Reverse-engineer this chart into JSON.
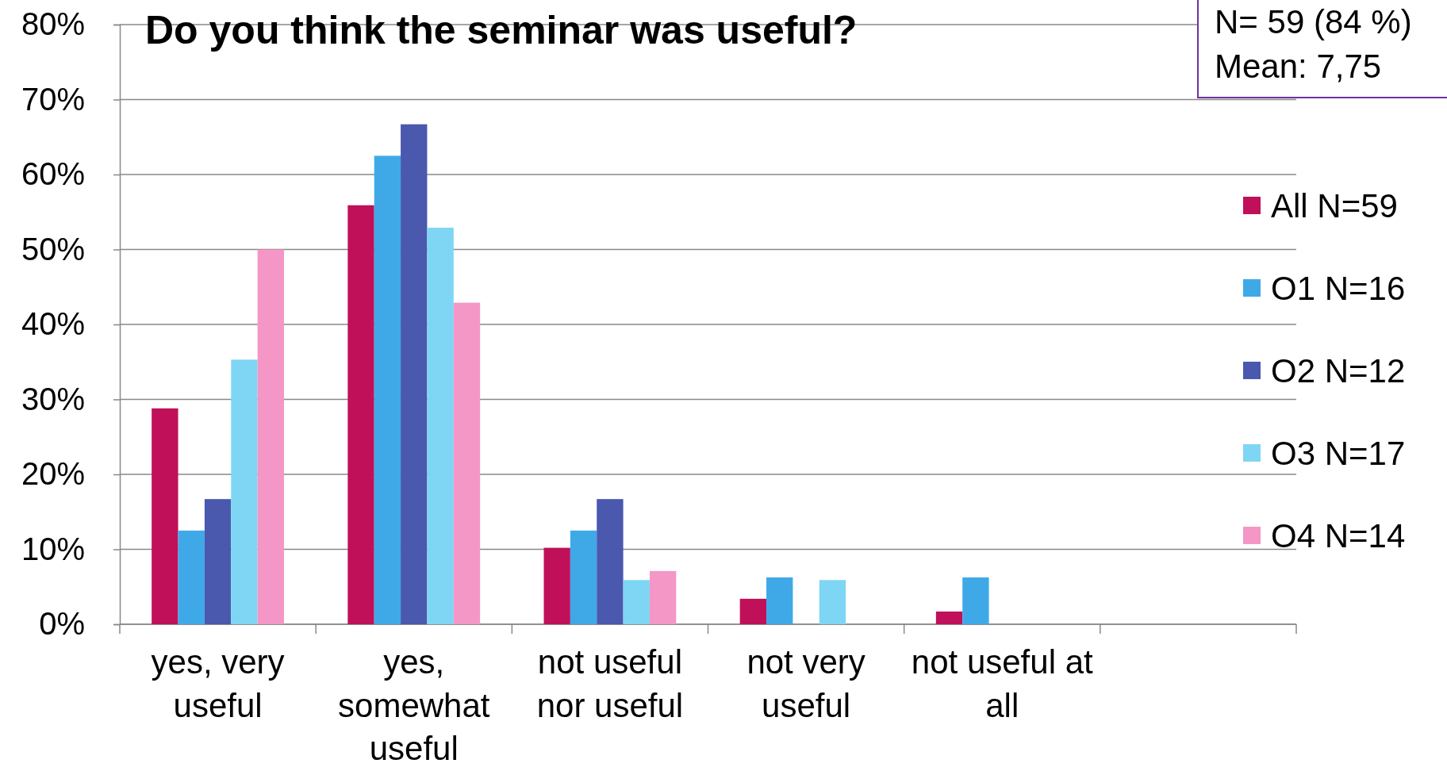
{
  "chart_data": {
    "type": "bar",
    "title": "Do you think the seminar was useful?",
    "annotations": [
      "N= 59 (84 %)",
      "Mean: 7,75"
    ],
    "categories": [
      "yes, very useful",
      "yes, somewhat useful",
      "not useful nor useful",
      "not very useful",
      "not useful at all",
      null
    ],
    "series": [
      {
        "name": "All N=59",
        "color": "#c0105a",
        "values": [
          28.8,
          55.9,
          10.2,
          3.4,
          1.7,
          null
        ]
      },
      {
        "name": "O1 N=16",
        "color": "#3fa9e8",
        "values": [
          12.5,
          62.5,
          12.5,
          6.25,
          6.25,
          null
        ]
      },
      {
        "name": "O2 N=12",
        "color": "#4a58ae",
        "values": [
          16.7,
          66.7,
          16.7,
          0,
          0,
          null
        ]
      },
      {
        "name": "O3 N=17",
        "color": "#7fd6f4",
        "values": [
          35.3,
          52.9,
          5.9,
          5.9,
          0,
          null
        ]
      },
      {
        "name": "O4 N=14",
        "color": "#f497c6",
        "values": [
          50,
          42.9,
          7.1,
          0,
          0,
          null
        ]
      }
    ],
    "ylim": [
      0,
      80
    ],
    "yticks": [
      {
        "value": 0,
        "label": "0%"
      },
      {
        "value": 10,
        "label": "10%"
      },
      {
        "value": 20,
        "label": "20%"
      },
      {
        "value": 30,
        "label": "30%"
      },
      {
        "value": 40,
        "label": "40%"
      },
      {
        "value": 50,
        "label": "50%"
      },
      {
        "value": 60,
        "label": "60%"
      },
      {
        "value": 70,
        "label": "70%"
      },
      {
        "value": 80,
        "label": "80%"
      }
    ],
    "grid": "y",
    "legend": "right"
  }
}
